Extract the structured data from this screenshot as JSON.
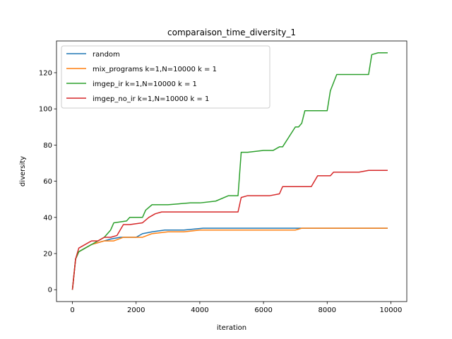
{
  "chart_data": {
    "type": "line",
    "title": "comparaison_time_diversity_1",
    "xlabel": "iteration",
    "ylabel": "diversity",
    "xlim": [
      -500,
      10500
    ],
    "ylim": [
      -6.55,
      137.55
    ],
    "xticks": [
      0,
      2000,
      4000,
      6000,
      8000,
      10000
    ],
    "yticks": [
      0,
      20,
      40,
      60,
      80,
      100,
      120
    ],
    "legend_position": "upper-left",
    "grid": false,
    "series": [
      {
        "name": "random",
        "color": "#1f77b4",
        "x": [
          0,
          100,
          200,
          400,
          600,
          800,
          1000,
          1200,
          1500,
          1700,
          2000,
          2200,
          2500,
          2900,
          3500,
          4100,
          5000,
          6000,
          7000,
          8000,
          9900
        ],
        "y": [
          0,
          17,
          21,
          23,
          25,
          26,
          27,
          28,
          29,
          29,
          29,
          31,
          32,
          33,
          33,
          34,
          34,
          34,
          34,
          34,
          34
        ]
      },
      {
        "name": "mix_programs k=1,N=10000 k = 1",
        "color": "#ff7f0e",
        "x": [
          0,
          100,
          200,
          400,
          600,
          800,
          1000,
          1300,
          1600,
          2000,
          2200,
          2500,
          3000,
          3500,
          4000,
          5000,
          6000,
          7000,
          7200,
          8000,
          9900
        ],
        "y": [
          0,
          17,
          21,
          23,
          25,
          26,
          27,
          27,
          29,
          29,
          29,
          31,
          32,
          32,
          33,
          33,
          33,
          33,
          34,
          34,
          34
        ]
      },
      {
        "name": "imgep_ir k=1,N=10000 k = 1",
        "color": "#2ca02c",
        "x": [
          0,
          100,
          200,
          500,
          800,
          1000,
          1200,
          1300,
          1700,
          1800,
          1900,
          2200,
          2300,
          2500,
          3000,
          3700,
          4000,
          4500,
          4900,
          5100,
          5200,
          5300,
          5500,
          6000,
          6300,
          6500,
          6600,
          7000,
          7100,
          7200,
          7300,
          8000,
          8100,
          8300,
          9300,
          9400,
          9600,
          9900
        ],
        "y": [
          0,
          17,
          21,
          24,
          27,
          29,
          33,
          37,
          38,
          40,
          40,
          40,
          44,
          47,
          47,
          48,
          48,
          49,
          52,
          52,
          52,
          76,
          76,
          77,
          77,
          79,
          79,
          90,
          90,
          92,
          99,
          99,
          110,
          119,
          119,
          130,
          131,
          131
        ]
      },
      {
        "name": "imgep_no_ir k=1,N=10000 k = 1",
        "color": "#d62728",
        "x": [
          0,
          100,
          200,
          400,
          600,
          800,
          1000,
          1200,
          1400,
          1600,
          1800,
          2200,
          2400,
          2600,
          2800,
          3000,
          3500,
          4000,
          4500,
          5000,
          5200,
          5300,
          5500,
          6000,
          6200,
          6500,
          6600,
          7000,
          7500,
          7700,
          8100,
          8200,
          8500,
          9000,
          9300,
          9900
        ],
        "y": [
          0,
          17,
          23,
          25,
          27,
          27,
          29,
          29,
          30,
          36,
          36,
          37,
          40,
          42,
          43,
          43,
          43,
          43,
          43,
          43,
          43,
          51,
          52,
          52,
          52,
          53,
          57,
          57,
          57,
          63,
          63,
          65,
          65,
          65,
          66,
          66
        ]
      }
    ]
  }
}
